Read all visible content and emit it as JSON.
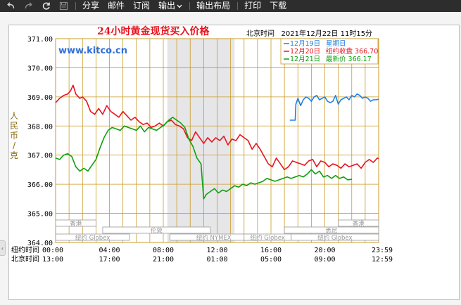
{
  "toolbar": {
    "undo_icon": "undo-icon",
    "redo_icon": "redo-icon",
    "refresh_icon": "refresh-icon",
    "save_icon": "save-icon",
    "share": "分享",
    "mail": "邮件",
    "subscribe": "订阅",
    "export": "输出",
    "export_layout": "输出布局",
    "print": "打印",
    "download": "下载"
  },
  "side_tab_glyph": "‹",
  "chart_data": {
    "type": "line",
    "title": "24小时黄金现货买入价格",
    "watermark": "www.kitco.cn",
    "timestamp": "北京时间   2021年12月22日 11时15分",
    "ylabel": "人民币/克",
    "ylim": [
      364.0,
      371.0
    ],
    "y_ticks": [
      371.0,
      370.0,
      369.0,
      368.0,
      367.0,
      366.0,
      365.0,
      364.0
    ],
    "x_label_ny": "纽约时间",
    "x_label_bj": "北京时间",
    "x_ticks_ny": [
      "00:00",
      "04:00",
      "08:00",
      "12:00",
      "16:00",
      "20:00",
      "23:59"
    ],
    "x_ticks_bj": [
      "13:00",
      "17:00",
      "21:00",
      "01:00",
      "05:00",
      "09:00",
      "12:59"
    ],
    "x_tick_hours": [
      0,
      4,
      8,
      12,
      16,
      20,
      24
    ],
    "session_shade_hours": [
      8.3,
      13.3
    ],
    "legend": [
      {
        "date": "12月19日",
        "label": "星期日",
        "color": "#1e7fe6"
      },
      {
        "date": "12月20日",
        "label": "纽约收盘 366.70",
        "color": "#e8141e"
      },
      {
        "date": "12月21日",
        "label": "最新价 366.17",
        "color": "#0ea00e"
      }
    ],
    "markets": [
      {
        "name": "香港",
        "start": 0,
        "end": 3,
        "row": 0
      },
      {
        "name": "伦敦",
        "start": 3.5,
        "end": 11.5,
        "row": 1
      },
      {
        "name": "纽约 Globex",
        "start": 0,
        "end": 5.5,
        "row": 2
      },
      {
        "name": "纽约 NYMEX",
        "start": 8.5,
        "end": 15,
        "row": 2
      },
      {
        "name": "纽约 Globex",
        "start": 14,
        "end": 17.5,
        "row": 2
      },
      {
        "name": "香港",
        "start": 21,
        "end": 24,
        "row": 0
      },
      {
        "name": "悉尼",
        "start": 17,
        "end": 24,
        "row": 1
      },
      {
        "name": "纽约 Globex",
        "start": 17.5,
        "end": 24,
        "row": 2
      }
    ],
    "series": [
      {
        "name": "12月19日",
        "color": "#1e7fe6",
        "points": [
          [
            17.4,
            368.2
          ],
          [
            17.8,
            368.2
          ],
          [
            17.85,
            368.75
          ],
          [
            18.0,
            368.95
          ],
          [
            18.2,
            368.7
          ],
          [
            18.4,
            368.9
          ],
          [
            18.6,
            369.0
          ],
          [
            18.8,
            368.95
          ],
          [
            19.0,
            368.85
          ],
          [
            19.2,
            369.0
          ],
          [
            19.4,
            369.05
          ],
          [
            19.6,
            368.9
          ],
          [
            19.8,
            368.95
          ],
          [
            20.0,
            369.0
          ],
          [
            20.2,
            368.85
          ],
          [
            20.4,
            368.8
          ],
          [
            20.6,
            368.85
          ],
          [
            20.8,
            369.05
          ],
          [
            21.0,
            368.75
          ],
          [
            21.2,
            368.9
          ],
          [
            21.4,
            368.95
          ],
          [
            21.6,
            369.0
          ],
          [
            21.8,
            368.9
          ],
          [
            22.0,
            369.05
          ],
          [
            22.2,
            369.0
          ],
          [
            22.4,
            369.1
          ],
          [
            22.6,
            369.05
          ],
          [
            22.8,
            368.95
          ],
          [
            23.0,
            369.0
          ],
          [
            23.2,
            368.95
          ],
          [
            23.4,
            368.85
          ],
          [
            23.6,
            368.9
          ],
          [
            23.8,
            368.9
          ],
          [
            24.0,
            368.92
          ]
        ]
      },
      {
        "name": "12月20日",
        "color": "#e8141e",
        "points": [
          [
            0,
            368.8
          ],
          [
            0.3,
            368.95
          ],
          [
            0.6,
            369.05
          ],
          [
            0.9,
            369.1
          ],
          [
            1.1,
            369.2
          ],
          [
            1.3,
            369.4
          ],
          [
            1.5,
            369.1
          ],
          [
            1.8,
            368.95
          ],
          [
            2.0,
            369.0
          ],
          [
            2.3,
            368.85
          ],
          [
            2.6,
            368.5
          ],
          [
            2.9,
            368.4
          ],
          [
            3.2,
            368.6
          ],
          [
            3.5,
            368.4
          ],
          [
            3.8,
            368.7
          ],
          [
            4.1,
            368.5
          ],
          [
            4.4,
            368.4
          ],
          [
            4.7,
            368.3
          ],
          [
            5.0,
            368.5
          ],
          [
            5.3,
            368.35
          ],
          [
            5.6,
            368.2
          ],
          [
            5.9,
            368.3
          ],
          [
            6.2,
            368.15
          ],
          [
            6.5,
            368.05
          ],
          [
            6.8,
            368.1
          ],
          [
            7.1,
            367.95
          ],
          [
            7.4,
            368.0
          ],
          [
            7.7,
            368.1
          ],
          [
            8.0,
            368.0
          ],
          [
            8.3,
            368.15
          ],
          [
            8.6,
            368.2
          ],
          [
            8.9,
            368.05
          ],
          [
            9.2,
            368.0
          ],
          [
            9.5,
            367.9
          ],
          [
            9.8,
            367.6
          ],
          [
            10.1,
            367.5
          ],
          [
            10.4,
            367.8
          ],
          [
            10.7,
            367.6
          ],
          [
            11.0,
            367.4
          ],
          [
            11.3,
            367.6
          ],
          [
            11.6,
            367.45
          ],
          [
            11.9,
            367.6
          ],
          [
            12.2,
            367.5
          ],
          [
            12.5,
            367.65
          ],
          [
            12.8,
            367.35
          ],
          [
            13.1,
            367.55
          ],
          [
            13.4,
            367.5
          ],
          [
            13.7,
            367.7
          ],
          [
            14.0,
            367.6
          ],
          [
            14.3,
            367.5
          ],
          [
            14.6,
            367.2
          ],
          [
            14.9,
            367.4
          ],
          [
            15.2,
            367.2
          ],
          [
            15.5,
            366.95
          ],
          [
            15.8,
            366.7
          ],
          [
            16.1,
            366.6
          ],
          [
            16.4,
            366.9
          ],
          [
            16.7,
            366.7
          ],
          [
            17.0,
            366.5
          ],
          [
            17.3,
            366.6
          ],
          [
            17.6,
            366.8
          ],
          [
            17.9,
            366.75
          ],
          [
            18.2,
            366.7
          ],
          [
            18.5,
            366.65
          ],
          [
            18.8,
            366.8
          ],
          [
            19.1,
            366.85
          ],
          [
            19.4,
            366.6
          ],
          [
            19.7,
            366.8
          ],
          [
            20.0,
            366.75
          ],
          [
            20.3,
            366.6
          ],
          [
            20.6,
            366.7
          ],
          [
            20.9,
            366.65
          ],
          [
            21.2,
            366.55
          ],
          [
            21.5,
            366.7
          ],
          [
            21.8,
            366.6
          ],
          [
            22.1,
            366.65
          ],
          [
            22.4,
            366.7
          ],
          [
            22.7,
            366.55
          ],
          [
            23.0,
            366.75
          ],
          [
            23.3,
            366.85
          ],
          [
            23.6,
            366.75
          ],
          [
            23.9,
            366.9
          ],
          [
            24.0,
            366.88
          ]
        ]
      },
      {
        "name": "12月21日",
        "color": "#0ea00e",
        "points": [
          [
            0,
            366.9
          ],
          [
            0.3,
            366.85
          ],
          [
            0.6,
            367.0
          ],
          [
            0.9,
            367.05
          ],
          [
            1.2,
            366.95
          ],
          [
            1.5,
            366.6
          ],
          [
            1.8,
            366.45
          ],
          [
            2.1,
            366.55
          ],
          [
            2.4,
            366.45
          ],
          [
            2.7,
            366.65
          ],
          [
            3.0,
            366.85
          ],
          [
            3.3,
            367.25
          ],
          [
            3.6,
            367.6
          ],
          [
            3.9,
            367.85
          ],
          [
            4.2,
            367.95
          ],
          [
            4.5,
            367.9
          ],
          [
            4.8,
            367.85
          ],
          [
            5.1,
            368.0
          ],
          [
            5.4,
            367.95
          ],
          [
            5.7,
            367.9
          ],
          [
            6.0,
            367.85
          ],
          [
            6.3,
            368.0
          ],
          [
            6.6,
            367.8
          ],
          [
            6.9,
            367.95
          ],
          [
            7.2,
            367.9
          ],
          [
            7.5,
            367.85
          ],
          [
            7.8,
            367.95
          ],
          [
            8.1,
            368.05
          ],
          [
            8.4,
            368.2
          ],
          [
            8.7,
            368.3
          ],
          [
            9.0,
            368.2
          ],
          [
            9.3,
            368.1
          ],
          [
            9.6,
            367.95
          ],
          [
            9.9,
            367.55
          ],
          [
            10.2,
            367.3
          ],
          [
            10.5,
            366.9
          ],
          [
            10.8,
            366.7
          ],
          [
            11.0,
            365.5
          ],
          [
            11.2,
            365.65
          ],
          [
            11.5,
            365.75
          ],
          [
            11.8,
            365.85
          ],
          [
            12.1,
            365.7
          ],
          [
            12.4,
            365.8
          ],
          [
            12.7,
            365.75
          ],
          [
            13.0,
            365.85
          ],
          [
            13.3,
            365.95
          ],
          [
            13.6,
            365.9
          ],
          [
            13.9,
            366.0
          ],
          [
            14.2,
            365.95
          ],
          [
            14.5,
            366.05
          ],
          [
            14.8,
            366.0
          ],
          [
            15.1,
            366.05
          ],
          [
            15.4,
            366.1
          ],
          [
            15.7,
            366.2
          ],
          [
            16.0,
            366.15
          ],
          [
            16.3,
            366.1
          ],
          [
            16.6,
            366.15
          ],
          [
            16.9,
            366.2
          ],
          [
            17.2,
            366.25
          ],
          [
            17.5,
            366.2
          ],
          [
            17.8,
            366.25
          ],
          [
            18.1,
            366.3
          ],
          [
            18.4,
            366.25
          ],
          [
            18.7,
            366.35
          ],
          [
            19.0,
            366.5
          ],
          [
            19.3,
            366.35
          ],
          [
            19.6,
            366.45
          ],
          [
            19.9,
            366.25
          ],
          [
            20.2,
            366.3
          ],
          [
            20.5,
            366.2
          ],
          [
            20.8,
            366.3
          ],
          [
            21.1,
            366.2
          ],
          [
            21.4,
            366.25
          ],
          [
            21.7,
            366.15
          ],
          [
            22.0,
            366.17
          ]
        ]
      }
    ]
  }
}
